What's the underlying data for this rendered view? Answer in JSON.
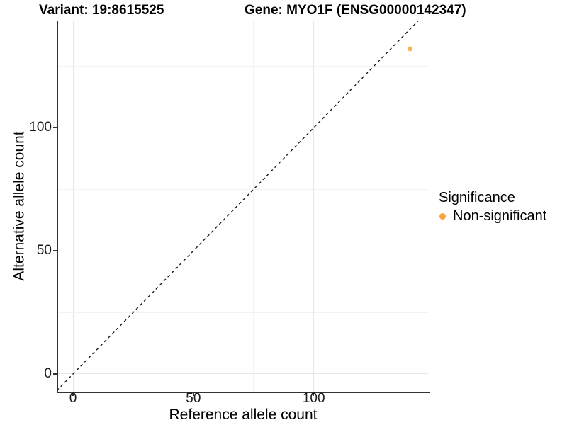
{
  "header": {
    "variant_title": "Variant: 19:8615525",
    "gene_title": "Gene: MYO1F (ENSG00000142347)"
  },
  "legend": {
    "title": "Significance",
    "items": [
      {
        "label": "Non-significant",
        "color": "#FAA43A"
      }
    ]
  },
  "colors": {
    "point": "#FAA43A",
    "axis_line": "#333333",
    "grid_major": "#E7E7E7",
    "grid_minor": "#F3F3F3",
    "identity_line": "#1A1A1A"
  },
  "chart_data": {
    "type": "scatter",
    "title": "Variant: 19:8615525 | Gene: MYO1F (ENSG00000142347)",
    "xlabel": "Reference allele count",
    "ylabel": "Alternative allele count",
    "xlim": [
      -6.5,
      147.5
    ],
    "ylim": [
      -7.2,
      143.2
    ],
    "xticks": [
      0,
      50,
      100
    ],
    "yticks": [
      0,
      50,
      100
    ],
    "grid_ticks": [
      0,
      25,
      50,
      75,
      100,
      125
    ],
    "grid": true,
    "legend_position": "right",
    "identity_line": {
      "style": "dashed",
      "slope": 1,
      "intercept": 0
    },
    "series": [
      {
        "name": "Non-significant",
        "color": "#FAA43A",
        "points": [
          {
            "x": 140,
            "y": 132
          }
        ]
      }
    ]
  }
}
